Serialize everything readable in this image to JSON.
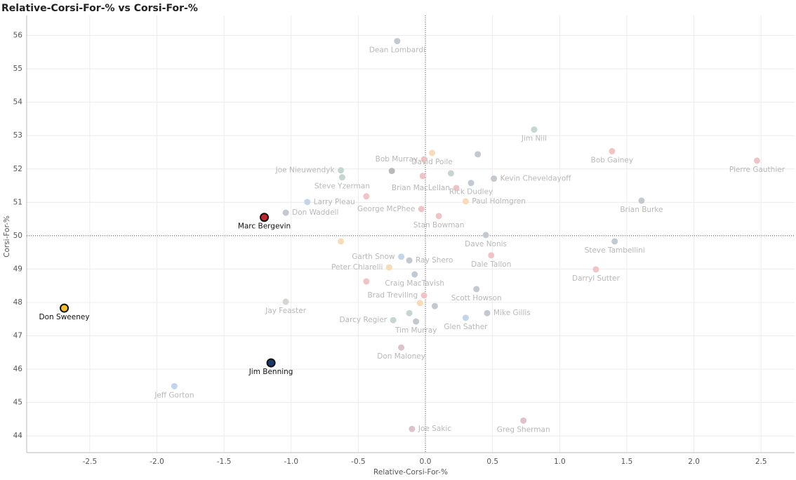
{
  "chart_data": {
    "type": "scatter",
    "title": "Relative-Corsi-For-% vs Corsi-For-%",
    "x_label": "Relative-Corsi-For-%",
    "y_label": "Corsi-For-%",
    "xlim": [
      -2.97,
      2.75
    ],
    "ylim": [
      43.5,
      56.6
    ],
    "xticks": [
      -2.5,
      {
        "value": -2,
        "label": "-2.0"
      },
      -1.5,
      {
        "value": -1,
        "label": "-1.0"
      },
      -0.5,
      {
        "value": 0,
        "label": "0.0"
      },
      0.5,
      {
        "value": 1,
        "label": "1.0"
      },
      1.5,
      {
        "value": 2,
        "label": "2.0"
      },
      2.5
    ],
    "yticks": [
      44,
      45,
      46,
      47,
      48,
      49,
      50,
      51,
      52,
      53,
      54,
      55,
      56
    ],
    "grid": true,
    "reference_lines": {
      "x": 0,
      "y": 50
    },
    "x": [
      -0.21,
      0.81,
      1.39,
      2.47,
      -0.01,
      0.05,
      0.39,
      -0.63,
      -0.25,
      -0.62,
      -0.02,
      0.19,
      0.23,
      0.34,
      0.51,
      0.3,
      -0.88,
      -0.44,
      1.61,
      -0.03,
      -1.04,
      -1.2,
      0.1,
      0.45,
      1.41,
      -0.63,
      -0.18,
      -0.12,
      0.49,
      -0.27,
      -0.08,
      1.27,
      -0.44,
      0.38,
      -0.01,
      -1.04,
      -0.04,
      0.07,
      -2.69,
      0.46,
      -0.12,
      -0.24,
      -0.07,
      0.3,
      -0.18,
      -1.15,
      -1.87,
      0.73,
      -0.1
    ],
    "values": [
      55.83,
      53.18,
      52.53,
      52.25,
      52.29,
      52.48,
      52.44,
      51.96,
      51.94,
      51.75,
      51.79,
      51.87,
      51.43,
      51.58,
      51.71,
      51.03,
      51.01,
      51.18,
      51.05,
      50.8,
      50.69,
      50.55,
      50.59,
      50.02,
      49.83,
      49.83,
      49.37,
      49.26,
      49.41,
      49.05,
      48.84,
      48.99,
      48.63,
      48.4,
      48.21,
      48.02,
      47.98,
      47.89,
      47.83,
      47.68,
      47.68,
      47.47,
      47.43,
      47.54,
      46.65,
      46.19,
      45.49,
      44.46,
      44.21
    ],
    "labels": [
      "Dean Lombardi",
      "Jim Nill",
      "Bob Gainey",
      "Pierre Gauthier",
      "Bob Murray",
      "David Poile",
      null,
      "Joe Nieuwendyk",
      null,
      "Steve Yzerman",
      null,
      null,
      "Brian MacLellan",
      "Rick Dudley",
      "Kevin Cheveldayoff",
      "Paul Holmgren",
      "Larry Pleau",
      null,
      "Brian Burke",
      "George McPhee",
      "Don Waddell",
      "Marc Bergevin",
      "Stan Bowman",
      "Dave Nonis",
      "Steve Tambellini",
      null,
      "Garth Snow",
      "Ray Shero",
      "Dale Tallon",
      "Peter Chiarelli",
      "Craig MacTavish",
      "Darryl Sutter",
      null,
      "Scott Howson",
      "Brad Treviling",
      "Jay Feaster",
      null,
      null,
      "Don Sweeney",
      "Mike Gillis",
      null,
      "Darcy Regier",
      "Tim Murray",
      "Glen Sather",
      "Don Maloney",
      "Jim Benning",
      "Jeff Gorton",
      "Greg Sherman",
      "Joe Sakic"
    ],
    "colors": [
      "#c3c9d0",
      "#c5d5d0",
      "#f0c4c4",
      "#f0c4c4",
      "#f0c4c4",
      "#f6dcb8",
      "#c3c9d0",
      "#c5d5d0",
      "#b9b9b9",
      "#c5d5d0",
      "#f0c4c4",
      "#c5d5d0",
      "#f0c4c4",
      "#c3c9d0",
      "#c3c9d0",
      "#f6dcb8",
      "#c3d5ea",
      "#f0c4c4",
      "#c3c9d0",
      "#f0c4c4",
      "#c3c9d0",
      "#c1272d",
      "#f0c4c4",
      "#c3c9d0",
      "#c3c9d0",
      "#f6dcb8",
      "#c3d5ea",
      "#c3c9d0",
      "#f0c4c4",
      "#f6dcb8",
      "#c3c9d0",
      "#f0c4c4",
      "#f0c4c4",
      "#c3c9d0",
      "#f0c4c4",
      "#d6d6d0",
      "#f6dcb8",
      "#c3c9d0",
      "#f6be2c",
      "#c3c9d0",
      "#c5d5d0",
      "#c5d5d0",
      "#c3c9d0",
      "#c3d5ea",
      "#dcc3cb",
      "#1b3a6b",
      "#c3d5ea",
      "#dcc3cb",
      "#dcc3cb"
    ],
    "emphasized": [
      false,
      false,
      false,
      false,
      false,
      false,
      false,
      false,
      false,
      false,
      false,
      false,
      false,
      false,
      false,
      false,
      false,
      false,
      false,
      false,
      false,
      true,
      false,
      false,
      false,
      false,
      false,
      false,
      false,
      false,
      false,
      false,
      false,
      false,
      false,
      false,
      false,
      false,
      true,
      false,
      false,
      false,
      false,
      false,
      false,
      true,
      false,
      false,
      false
    ]
  }
}
